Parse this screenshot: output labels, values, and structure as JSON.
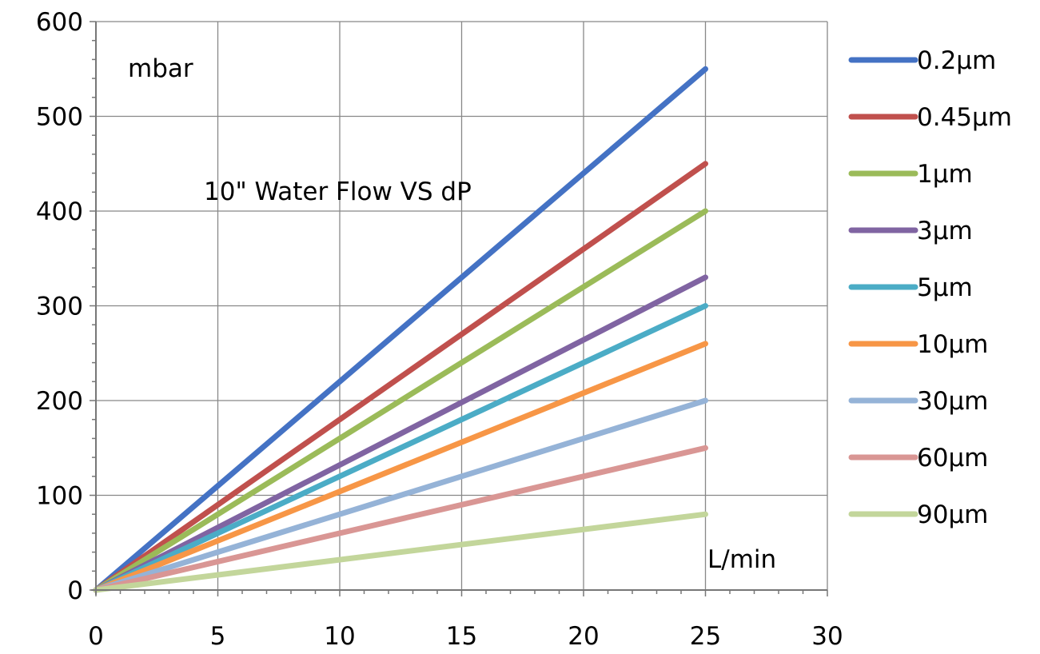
{
  "chart_data": {
    "type": "line",
    "title": "10\" Water Flow VS dP",
    "xlabel": "L/min",
    "ylabel": "mbar",
    "xlim": [
      0,
      30
    ],
    "ylim": [
      0,
      600
    ],
    "x_ticks": [
      0,
      5,
      10,
      15,
      20,
      25,
      30
    ],
    "y_ticks": [
      0,
      100,
      200,
      300,
      400,
      500,
      600
    ],
    "grid": true,
    "legend_position": "right",
    "series": [
      {
        "name": "0.2µm",
        "color": "#4472c4",
        "x": [
          0,
          25
        ],
        "y": [
          0,
          550
        ]
      },
      {
        "name": "0.45µm",
        "color": "#c0504d",
        "x": [
          0,
          25
        ],
        "y": [
          0,
          450
        ]
      },
      {
        "name": "1µm",
        "color": "#9bbb59",
        "x": [
          0,
          25
        ],
        "y": [
          0,
          400
        ]
      },
      {
        "name": "3µm",
        "color": "#8064a2",
        "x": [
          0,
          25
        ],
        "y": [
          0,
          330
        ]
      },
      {
        "name": "5µm",
        "color": "#4bacc6",
        "x": [
          0,
          25
        ],
        "y": [
          0,
          300
        ]
      },
      {
        "name": "10µm",
        "color": "#f79646",
        "x": [
          0,
          25
        ],
        "y": [
          0,
          260
        ]
      },
      {
        "name": "30µm",
        "color": "#95b3d7",
        "x": [
          0,
          25
        ],
        "y": [
          0,
          200
        ]
      },
      {
        "name": "60µm",
        "color": "#d99694",
        "x": [
          0,
          25
        ],
        "y": [
          0,
          150
        ]
      },
      {
        "name": "90µm",
        "color": "#c3d69b",
        "x": [
          0,
          25
        ],
        "y": [
          0,
          80
        ]
      }
    ]
  }
}
